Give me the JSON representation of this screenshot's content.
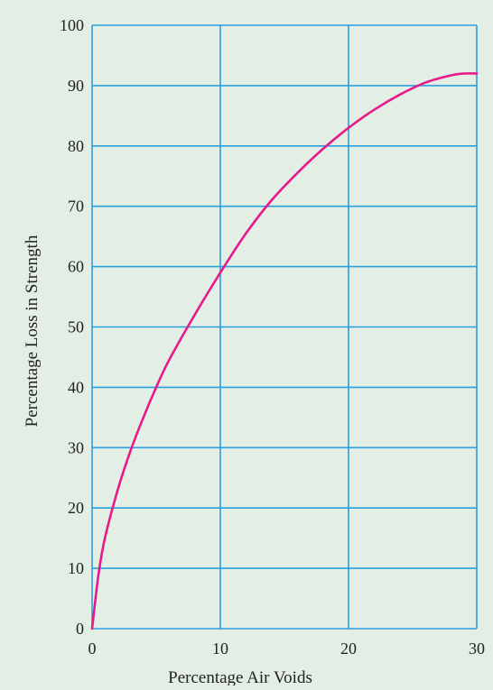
{
  "chart_data": {
    "type": "line",
    "title": "",
    "xlabel": "Percentage Air Voids",
    "ylabel": "Percentage Loss in Strength",
    "xlim": [
      0,
      30
    ],
    "ylim": [
      0,
      100
    ],
    "x_ticks": [
      0,
      10,
      20,
      30
    ],
    "y_ticks": [
      0,
      10,
      20,
      30,
      40,
      50,
      60,
      70,
      80,
      90,
      100
    ],
    "grid": true,
    "colors": {
      "line": "#e8198b",
      "grid": "#2a9fe0",
      "background": "#e3eee4"
    },
    "series": [
      {
        "x": [
          0,
          0.5,
          1,
          2,
          3,
          4,
          5,
          6,
          8,
          10,
          12,
          14,
          16,
          18,
          20,
          22,
          24,
          26,
          28,
          29,
          30
        ],
        "values": [
          0,
          9,
          15,
          23,
          29.5,
          35,
          40,
          44.5,
          52,
          59,
          65.5,
          71,
          75.5,
          79.5,
          83,
          86,
          88.5,
          90.5,
          91.7,
          92,
          92
        ]
      }
    ]
  }
}
